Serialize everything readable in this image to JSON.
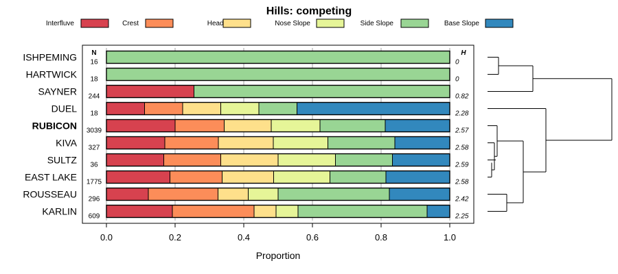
{
  "chart_data": {
    "type": "bar",
    "stacked": true,
    "orientation": "horizontal",
    "title": "Hills: competing",
    "xlabel": "Proportion",
    "xlim": [
      0,
      1
    ],
    "xticks": [
      0.0,
      0.2,
      0.4,
      0.6,
      0.8,
      1.0
    ],
    "xtick_labels": [
      "0.0",
      "0.2",
      "0.4",
      "0.6",
      "0.8",
      "1.0"
    ],
    "n_header": "N",
    "h_header": "H",
    "legend_position": "top",
    "series": [
      {
        "name": "Interfluve",
        "color": "#D7424F"
      },
      {
        "name": "Crest",
        "color": "#FC8D59"
      },
      {
        "name": "Head Slope",
        "color": "#FEE08B"
      },
      {
        "name": "Nose Slope",
        "color": "#E6F598"
      },
      {
        "name": "Side Slope",
        "color": "#99D594"
      },
      {
        "name": "Base Slope",
        "color": "#3288BD"
      }
    ],
    "rows": [
      {
        "name": "ISHPEMING",
        "bold": false,
        "n": "16",
        "h": "0",
        "values": [
          0,
          0,
          0,
          0,
          1.0,
          0
        ]
      },
      {
        "name": "HARTWICK",
        "bold": false,
        "n": "18",
        "h": "0",
        "values": [
          0,
          0,
          0,
          0,
          1.0,
          0
        ]
      },
      {
        "name": "SAYNER",
        "bold": false,
        "n": "244",
        "h": "0.82",
        "values": [
          0.255,
          0,
          0,
          0,
          0.745,
          0
        ]
      },
      {
        "name": "DUEL",
        "bold": false,
        "n": "18",
        "h": "2.28",
        "values": [
          0.111,
          0.111,
          0.111,
          0.111,
          0.111,
          0.445
        ]
      },
      {
        "name": "RUBICON",
        "bold": true,
        "n": "3039",
        "h": "2.57",
        "values": [
          0.2,
          0.143,
          0.137,
          0.142,
          0.19,
          0.188
        ]
      },
      {
        "name": "KIVA",
        "bold": false,
        "n": "327",
        "h": "2.58",
        "values": [
          0.17,
          0.156,
          0.16,
          0.159,
          0.195,
          0.16
        ]
      },
      {
        "name": "SULTZ",
        "bold": false,
        "n": "36",
        "h": "2.59",
        "values": [
          0.167,
          0.166,
          0.167,
          0.167,
          0.166,
          0.167
        ]
      },
      {
        "name": "EAST LAKE",
        "bold": false,
        "n": "1775",
        "h": "2.58",
        "values": [
          0.185,
          0.152,
          0.15,
          0.164,
          0.163,
          0.186
        ]
      },
      {
        "name": "ROUSSEAU",
        "bold": false,
        "n": "296",
        "h": "2.42",
        "values": [
          0.122,
          0.203,
          0.088,
          0.087,
          0.324,
          0.176
        ]
      },
      {
        "name": "KARLIN",
        "bold": false,
        "n": "609",
        "h": "2.25",
        "values": [
          0.192,
          0.238,
          0.064,
          0.064,
          0.376,
          0.066
        ]
      }
    ],
    "dendrogram_order": [
      "ISHPEMING",
      "HARTWICK",
      "SAYNER",
      "DUEL",
      "RUBICON",
      "KIVA",
      "SULTZ",
      "EAST LAKE",
      "ROUSSEAU",
      "KARLIN"
    ]
  }
}
